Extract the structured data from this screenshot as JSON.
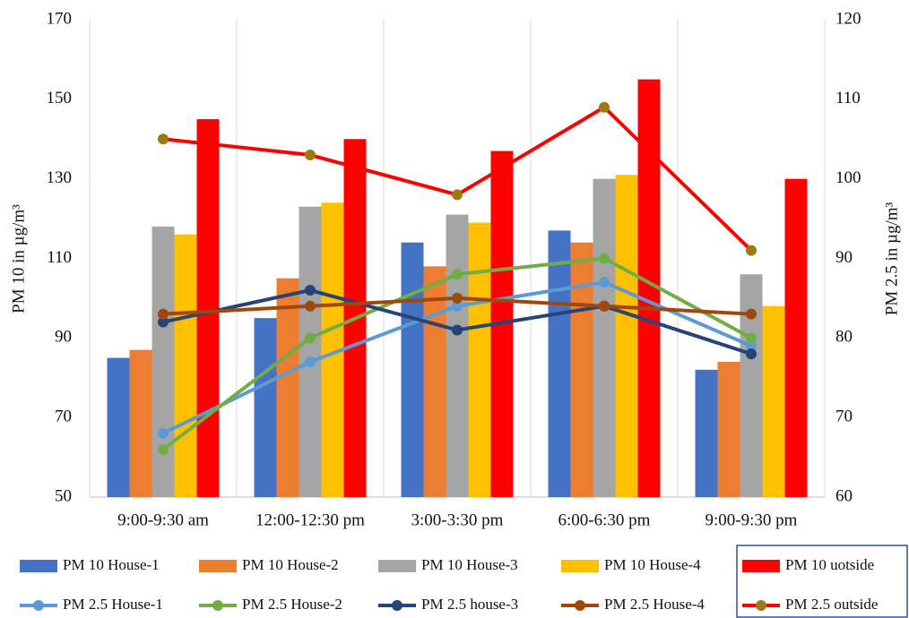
{
  "chart_data": {
    "type": "bar_line",
    "y_label": "PM 10 in µg/m³",
    "y2_label": "PM 2.5 in µg/m³",
    "categories": [
      "9:00-9:30 am",
      "12:00-12:30 pm",
      "3:00-3:30 pm",
      "6:00-6:30 pm",
      "9:00-9:30 pm"
    ],
    "ylim": [
      50,
      170
    ],
    "yticks": [
      50,
      70,
      90,
      110,
      130,
      150,
      170
    ],
    "y2lim": [
      60,
      120
    ],
    "y2ticks": [
      60,
      70,
      80,
      90,
      100,
      110,
      120
    ],
    "series": [
      {
        "name": "PM 10 House-1",
        "type": "bar",
        "color": "#4472c4",
        "values": [
          85,
          95,
          114,
          117,
          82
        ]
      },
      {
        "name": "PM 10 House-2",
        "type": "bar",
        "color": "#ed7d31",
        "values": [
          87,
          105,
          108,
          114,
          84
        ]
      },
      {
        "name": "PM 10 House-3",
        "type": "bar",
        "color": "#a5a5a5",
        "values": [
          118,
          123,
          121,
          130,
          106
        ]
      },
      {
        "name": "PM 10 House-4",
        "type": "bar",
        "color": "#ffc000",
        "values": [
          116,
          124,
          119,
          131,
          98
        ]
      },
      {
        "name": "PM 10 uotside",
        "type": "bar",
        "color": "#ff0000",
        "values": [
          145,
          140,
          137,
          155,
          130
        ]
      },
      {
        "name": "PM 2.5 House-1",
        "type": "line",
        "axis": "y2",
        "color": "#5b9bd5",
        "marker_color": "#5b9bd5",
        "values": [
          68,
          77,
          84,
          87,
          79
        ]
      },
      {
        "name": "PM 2.5 House-2",
        "type": "line",
        "axis": "y2",
        "color": "#70ad47",
        "marker_color": "#70ad47",
        "values": [
          66,
          80,
          88,
          90,
          80
        ]
      },
      {
        "name": "PM 2.5 house-3",
        "type": "line",
        "axis": "y2",
        "color": "#264478",
        "marker_color": "#264478",
        "values": [
          82,
          86,
          81,
          84,
          78
        ]
      },
      {
        "name": "PM 2.5 House-4",
        "type": "line",
        "axis": "y2",
        "color": "#9e480e",
        "marker_color": "#9e480e",
        "values": [
          83,
          84,
          85,
          84,
          83
        ]
      },
      {
        "name": "PM 2.5 outside",
        "type": "line",
        "axis": "y2",
        "color": "#ff0000",
        "marker_color": "#9c7a12",
        "values": [
          105,
          103,
          98,
          109,
          91
        ]
      }
    ]
  }
}
